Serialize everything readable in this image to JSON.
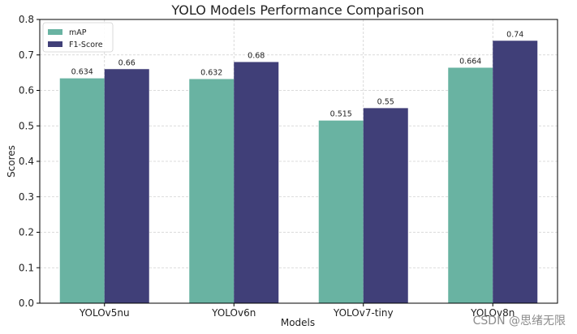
{
  "chart_data": {
    "type": "bar",
    "title": "YOLO Models Performance Comparison",
    "xlabel": "Models",
    "ylabel": "Scores",
    "categories": [
      "YOLOv5nu",
      "YOLOv6n",
      "YOLOv7-tiny",
      "YOLOv8n"
    ],
    "series": [
      {
        "name": "mAP",
        "color": "#69b3a2",
        "values": [
          0.634,
          0.632,
          0.515,
          0.664
        ],
        "labels": [
          "0.634",
          "0.632",
          "0.515",
          "0.664"
        ]
      },
      {
        "name": "F1-Score",
        "color": "#403f78",
        "values": [
          0.66,
          0.68,
          0.55,
          0.74
        ],
        "labels": [
          "0.66",
          "0.68",
          "0.55",
          "0.74"
        ]
      }
    ],
    "ylim": [
      0,
      0.8
    ],
    "yticks": [
      0.0,
      0.1,
      0.2,
      0.3,
      0.4,
      0.5,
      0.6,
      0.7,
      0.8
    ],
    "ytick_labels": [
      "0.0",
      "0.1",
      "0.2",
      "0.3",
      "0.4",
      "0.5",
      "0.6",
      "0.7",
      "0.8"
    ],
    "grid": true,
    "legend": "top-left"
  },
  "watermark": "CSDN @思绪无限"
}
